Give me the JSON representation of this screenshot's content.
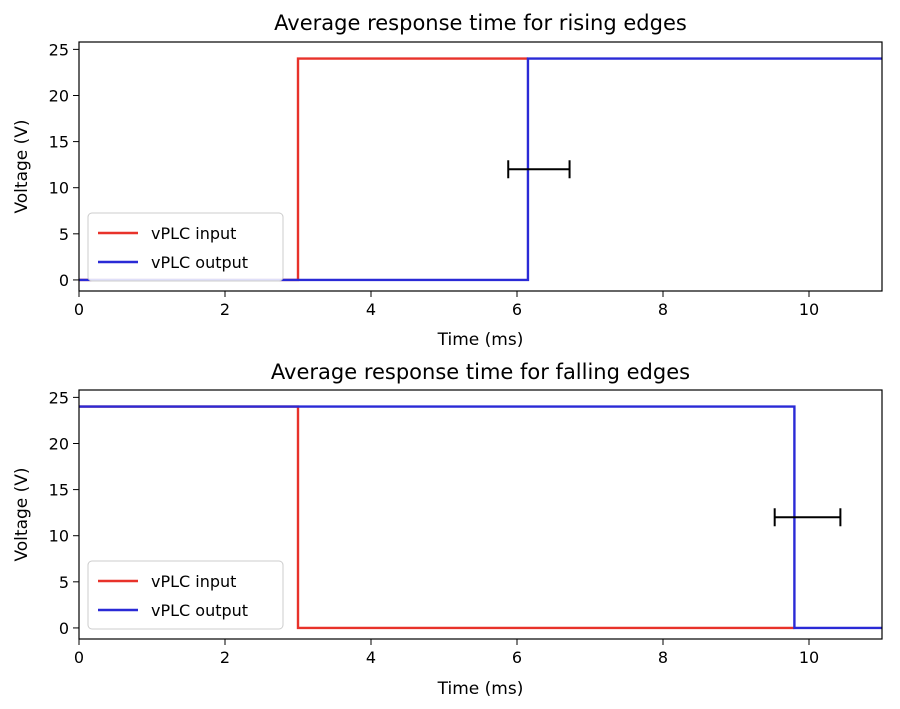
{
  "chart_data": [
    {
      "type": "line",
      "title": "Average response time for rising edges",
      "xlabel": "Time (ms)",
      "ylabel": "Voltage (V)",
      "xlim": [
        0,
        11
      ],
      "ylim": [
        -1.2,
        25.8
      ],
      "xticks": [
        0,
        2,
        4,
        6,
        8,
        10
      ],
      "yticks": [
        0,
        5,
        10,
        15,
        20,
        25
      ],
      "grid": false,
      "legend_position": "lower-left",
      "series": [
        {
          "name": "vPLC input",
          "color": "#e8322a",
          "x": [
            0,
            3.0,
            3.0,
            6.15
          ],
          "y": [
            0,
            0,
            24,
            24
          ]
        },
        {
          "name": "vPLC output",
          "color": "#2a2ad6",
          "x": [
            0,
            6.15,
            6.15,
            11
          ],
          "y": [
            0,
            0,
            24,
            24
          ]
        }
      ],
      "errorbar": {
        "x": 6.3,
        "y": 12,
        "xerr_low": 0.42,
        "xerr_high": 0.42,
        "color": "#000000"
      }
    },
    {
      "type": "line",
      "title": "Average response time for falling edges",
      "xlabel": "Time (ms)",
      "ylabel": "Voltage (V)",
      "xlim": [
        0,
        11
      ],
      "ylim": [
        -1.2,
        25.8
      ],
      "xticks": [
        0,
        2,
        4,
        6,
        8,
        10
      ],
      "yticks": [
        0,
        5,
        10,
        15,
        20,
        25
      ],
      "grid": false,
      "legend_position": "lower-left",
      "series": [
        {
          "name": "vPLC input",
          "color": "#e8322a",
          "x": [
            0,
            3.0,
            3.0,
            9.8
          ],
          "y": [
            24,
            24,
            0,
            0
          ]
        },
        {
          "name": "vPLC output",
          "color": "#2a2ad6",
          "x": [
            0,
            9.8,
            9.8,
            11
          ],
          "y": [
            24,
            24,
            0,
            0
          ]
        }
      ],
      "errorbar": {
        "x": 9.98,
        "y": 12,
        "xerr_low": 0.45,
        "xerr_high": 0.45,
        "color": "#000000"
      }
    }
  ]
}
